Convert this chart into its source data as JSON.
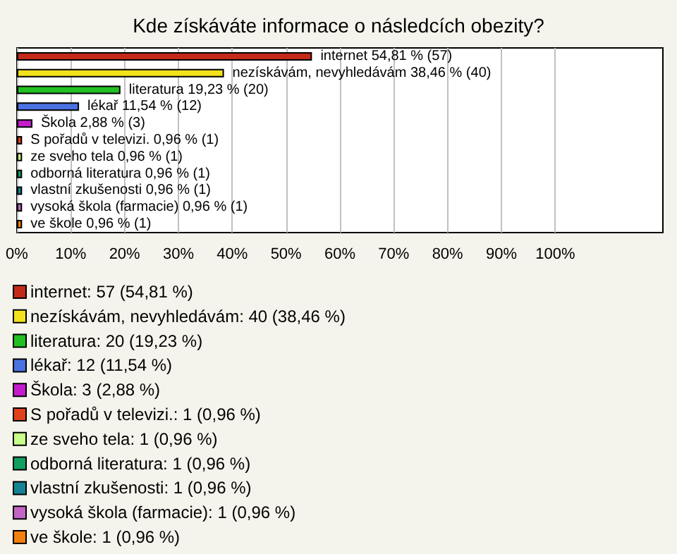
{
  "chart_data": {
    "type": "bar",
    "orientation": "horizontal",
    "title": "Kde získáváte informace o následcích obezity?",
    "categories": [
      null,
      null,
      null,
      null,
      null,
      null,
      null,
      null,
      null,
      null,
      null
    ],
    "series": [
      {
        "name": "internet: 57 (54,81 %)",
        "color": "#c42a1a",
        "values": [
          54.81,
          null,
          null,
          null,
          null,
          null,
          null,
          null,
          null,
          null,
          null
        ],
        "value_labels": [
          "internet 54,81 % (57)",
          null,
          null,
          null,
          null,
          null,
          null,
          null,
          null,
          null,
          null
        ]
      },
      {
        "name": "nezískávám, nevyhledávám: 40 (38,46 %)",
        "color": "#f2e21c",
        "values": [
          null,
          38.46,
          null,
          null,
          null,
          null,
          null,
          null,
          null,
          null,
          null
        ],
        "value_labels": [
          null,
          "nezískávám, nevyhledávám 38,46 % (40)",
          null,
          null,
          null,
          null,
          null,
          null,
          null,
          null,
          null
        ]
      },
      {
        "name": "literatura: 20 (19,23 %)",
        "color": "#22c022",
        "values": [
          null,
          null,
          19.23,
          null,
          null,
          null,
          null,
          null,
          null,
          null,
          null
        ],
        "value_labels": [
          null,
          null,
          "literatura 19,23 % (20)",
          null,
          null,
          null,
          null,
          null,
          null,
          null,
          null
        ]
      },
      {
        "name": "lékař: 12 (11,54 %)",
        "color": "#4a72e0",
        "values": [
          null,
          null,
          null,
          11.54,
          null,
          null,
          null,
          null,
          null,
          null,
          null
        ],
        "value_labels": [
          null,
          null,
          null,
          "lékař 11,54 % (12)",
          null,
          null,
          null,
          null,
          null,
          null,
          null
        ]
      },
      {
        "name": "Škola: 3 (2,88 %)",
        "color": "#c41ccc",
        "values": [
          null,
          null,
          null,
          null,
          2.88,
          null,
          null,
          null,
          null,
          null,
          null
        ],
        "value_labels": [
          null,
          null,
          null,
          null,
          "Škola 2,88 % (3)",
          null,
          null,
          null,
          null,
          null,
          null
        ]
      },
      {
        "name": "S pořadů v televizi.: 1 (0,96 %)",
        "color": "#e0401a",
        "values": [
          null,
          null,
          null,
          null,
          null,
          0.96,
          null,
          null,
          null,
          null,
          null
        ],
        "value_labels": [
          null,
          null,
          null,
          null,
          null,
          "S pořadů v televizi. 0,96 % (1)",
          null,
          null,
          null,
          null,
          null
        ]
      },
      {
        "name": "ze sveho tela: 1 (0,96 %)",
        "color": "#c8ff88",
        "values": [
          null,
          null,
          null,
          null,
          null,
          null,
          0.96,
          null,
          null,
          null,
          null
        ],
        "value_labels": [
          null,
          null,
          null,
          null,
          null,
          null,
          "ze sveho tela 0,96 % (1)",
          null,
          null,
          null,
          null
        ]
      },
      {
        "name": "odborná literatura: 1 (0,96 %)",
        "color": "#12a060",
        "values": [
          null,
          null,
          null,
          null,
          null,
          null,
          null,
          0.96,
          null,
          null,
          null
        ],
        "value_labels": [
          null,
          null,
          null,
          null,
          null,
          null,
          null,
          "odborná literatura 0,96 % (1)",
          null,
          null,
          null
        ]
      },
      {
        "name": "vlastní zkušenosti: 1 (0,96 %)",
        "color": "#148494",
        "values": [
          null,
          null,
          null,
          null,
          null,
          null,
          null,
          null,
          0.96,
          null,
          null
        ],
        "value_labels": [
          null,
          null,
          null,
          null,
          null,
          null,
          null,
          null,
          "vlastní zkušenosti 0,96 % (1)",
          null,
          null
        ]
      },
      {
        "name": "vysoká škola (farmacie): 1 (0,96 %)",
        "color": "#c464c4",
        "values": [
          null,
          null,
          null,
          null,
          null,
          null,
          null,
          null,
          null,
          0.96,
          null
        ],
        "value_labels": [
          null,
          null,
          null,
          null,
          null,
          null,
          null,
          null,
          null,
          "vysoká škola (farmacie) 0,96 % (1)",
          null
        ]
      },
      {
        "name": "ve škole: 1 (0,96 %)",
        "color": "#f08010",
        "values": [
          null,
          null,
          null,
          null,
          null,
          null,
          null,
          null,
          null,
          null,
          0.96
        ],
        "value_labels": [
          null,
          null,
          null,
          null,
          null,
          null,
          null,
          null,
          null,
          null,
          "ve škole 0,96 % (1)"
        ]
      }
    ],
    "xlim": [
      0,
      120
    ],
    "xticks": [
      {
        "value": 0,
        "label": "0%"
      },
      {
        "value": 10,
        "label": "10%"
      },
      {
        "value": 20,
        "label": "20%"
      },
      {
        "value": 30,
        "label": "30%"
      },
      {
        "value": 40,
        "label": "40%"
      },
      {
        "value": 50,
        "label": "50%"
      },
      {
        "value": 60,
        "label": "60%"
      },
      {
        "value": 70,
        "label": "70%"
      },
      {
        "value": 80,
        "label": "80%"
      },
      {
        "value": 90,
        "label": "90%"
      },
      {
        "value": 100,
        "label": "100%"
      }
    ],
    "grid": "x",
    "legend": "bottom",
    "tick_labels": "x"
  }
}
